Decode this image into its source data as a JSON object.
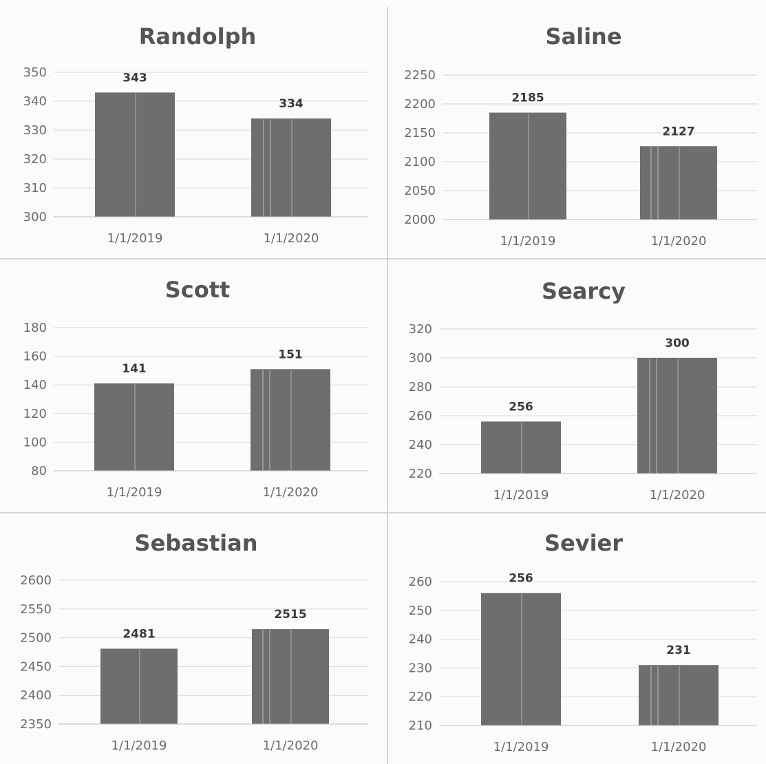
{
  "style": {
    "bar_color": "#6e6e6e",
    "background": "#fbfbfb"
  },
  "chart_data": [
    {
      "type": "bar",
      "title": "Randolph",
      "categories": [
        "1/1/2019",
        "1/1/2020"
      ],
      "values": [
        343,
        334
      ],
      "data_labels": [
        "343",
        "334"
      ],
      "ylim": [
        300,
        350
      ],
      "yticks": [
        "300",
        "310",
        "320",
        "330",
        "340",
        "350"
      ],
      "grid": true
    },
    {
      "type": "bar",
      "title": "Saline",
      "categories": [
        "1/1/2019",
        "1/1/2020"
      ],
      "values": [
        2185,
        2127
      ],
      "data_labels": [
        "2185",
        "2127"
      ],
      "ylim": [
        2000,
        2250
      ],
      "yticks": [
        "2000",
        "2050",
        "2100",
        "2150",
        "2200",
        "2250"
      ],
      "grid": true
    },
    {
      "type": "bar",
      "title": "Scott",
      "categories": [
        "1/1/2019",
        "1/1/2020"
      ],
      "values": [
        141,
        151
      ],
      "data_labels": [
        "141",
        "151"
      ],
      "ylim": [
        80,
        180
      ],
      "yticks": [
        "80",
        "100",
        "120",
        "140",
        "160",
        "180"
      ],
      "grid": true
    },
    {
      "type": "bar",
      "title": "Searcy",
      "categories": [
        "1/1/2019",
        "1/1/2020"
      ],
      "values": [
        256,
        300
      ],
      "data_labels": [
        "256",
        "300"
      ],
      "ylim": [
        220,
        320
      ],
      "yticks": [
        "220",
        "240",
        "260",
        "280",
        "300",
        "320"
      ],
      "grid": true
    },
    {
      "type": "bar",
      "title": "Sebastian",
      "categories": [
        "1/1/2019",
        "1/1/2020"
      ],
      "values": [
        2481,
        2515
      ],
      "data_labels": [
        "2481",
        "2515"
      ],
      "ylim": [
        2350,
        2600
      ],
      "yticks": [
        "2350",
        "2400",
        "2450",
        "2500",
        "2550",
        "2600"
      ],
      "grid": true
    },
    {
      "type": "bar",
      "title": "Sevier",
      "categories": [
        "1/1/2019",
        "1/1/2020"
      ],
      "values": [
        256,
        231
      ],
      "data_labels": [
        "256",
        "231"
      ],
      "ylim": [
        210,
        260
      ],
      "yticks": [
        "210",
        "220",
        "230",
        "240",
        "250",
        "260"
      ],
      "grid": true
    }
  ]
}
